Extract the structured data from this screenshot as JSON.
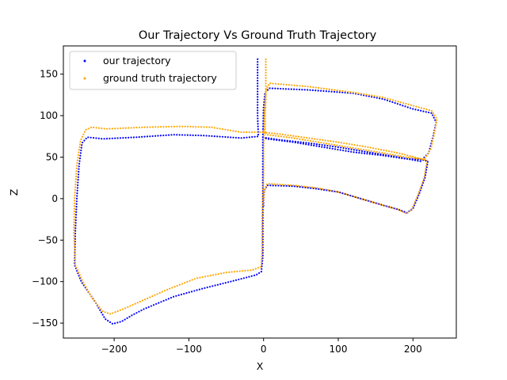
{
  "chart_data": {
    "type": "scatter",
    "title": "Our Trajectory Vs Ground Truth Trajectory",
    "xlabel": "X",
    "ylabel": "Z",
    "xlim": [
      -268,
      258
    ],
    "ylim": [
      -168,
      184
    ],
    "xticks": [
      -200,
      -100,
      0,
      100,
      200
    ],
    "yticks": [
      -150,
      -100,
      -50,
      0,
      50,
      100,
      150
    ],
    "grid": false,
    "legend_position": "upper left",
    "series": [
      {
        "name": "our trajectory",
        "color": "#0000ff",
        "path": [
          [
            -8,
            168
          ],
          [
            -8,
            150
          ],
          [
            -8,
            120
          ],
          [
            -8,
            100
          ],
          [
            -7,
            75
          ],
          [
            -30,
            73
          ],
          [
            -80,
            76
          ],
          [
            -120,
            77
          ],
          [
            -170,
            74
          ],
          [
            -215,
            72
          ],
          [
            -236,
            74
          ],
          [
            -243,
            67
          ],
          [
            -247,
            40
          ],
          [
            -250,
            0
          ],
          [
            -252,
            -40
          ],
          [
            -253,
            -80
          ],
          [
            -244,
            -100
          ],
          [
            -225,
            -125
          ],
          [
            -212,
            -145
          ],
          [
            -202,
            -151
          ],
          [
            -190,
            -148
          ],
          [
            -175,
            -140
          ],
          [
            -160,
            -133
          ],
          [
            -120,
            -118
          ],
          [
            -80,
            -108
          ],
          [
            -40,
            -99
          ],
          [
            -10,
            -92
          ],
          [
            -3,
            -88
          ],
          [
            -1,
            -70
          ],
          [
            -1,
            -40
          ],
          [
            -1,
            0
          ],
          [
            -1,
            40
          ],
          [
            -1,
            75
          ],
          [
            0,
            110
          ],
          [
            2,
            128
          ],
          [
            8,
            133
          ],
          [
            60,
            131
          ],
          [
            120,
            127
          ],
          [
            160,
            120
          ],
          [
            200,
            108
          ],
          [
            225,
            103
          ],
          [
            231,
            92
          ],
          [
            227,
            75
          ],
          [
            221,
            55
          ],
          [
            210,
            45
          ],
          [
            180,
            50
          ],
          [
            140,
            56
          ],
          [
            100,
            62
          ],
          [
            60,
            67
          ],
          [
            20,
            71
          ],
          [
            -2,
            74
          ],
          [
            5,
            72
          ],
          [
            40,
            68
          ],
          [
            80,
            62
          ],
          [
            120,
            56
          ],
          [
            160,
            52
          ],
          [
            190,
            48
          ],
          [
            212,
            47
          ],
          [
            220,
            45
          ],
          [
            216,
            25
          ],
          [
            208,
            5
          ],
          [
            200,
            -12
          ],
          [
            192,
            -17
          ],
          [
            180,
            -13
          ],
          [
            160,
            -8
          ],
          [
            130,
            0
          ],
          [
            100,
            8
          ],
          [
            70,
            12
          ],
          [
            40,
            15
          ],
          [
            5,
            16
          ],
          [
            1,
            10
          ],
          [
            0,
            0
          ],
          [
            0,
            -10
          ]
        ]
      },
      {
        "name": "ground truth trajectory",
        "color": "#ffa500",
        "path": [
          [
            3,
            168
          ],
          [
            3,
            150
          ],
          [
            3,
            120
          ],
          [
            2,
            100
          ],
          [
            2,
            80
          ],
          [
            -30,
            80
          ],
          [
            -70,
            86
          ],
          [
            -110,
            87
          ],
          [
            -160,
            86
          ],
          [
            -210,
            84
          ],
          [
            -230,
            86
          ],
          [
            -238,
            83
          ],
          [
            -245,
            70
          ],
          [
            -250,
            40
          ],
          [
            -253,
            0
          ],
          [
            -254,
            -40
          ],
          [
            -252,
            -80
          ],
          [
            -242,
            -100
          ],
          [
            -228,
            -122
          ],
          [
            -215,
            -136
          ],
          [
            -205,
            -139
          ],
          [
            -185,
            -132
          ],
          [
            -165,
            -124
          ],
          [
            -130,
            -110
          ],
          [
            -90,
            -96
          ],
          [
            -50,
            -89
          ],
          [
            -15,
            -86
          ],
          [
            -3,
            -82
          ],
          [
            -2,
            -60
          ],
          [
            -2,
            -30
          ],
          [
            -1,
            0
          ],
          [
            0,
            30
          ],
          [
            0,
            60
          ],
          [
            1,
            100
          ],
          [
            3,
            130
          ],
          [
            8,
            139
          ],
          [
            60,
            135
          ],
          [
            120,
            128
          ],
          [
            160,
            122
          ],
          [
            200,
            112
          ],
          [
            225,
            106
          ],
          [
            232,
            96
          ],
          [
            229,
            80
          ],
          [
            224,
            60
          ],
          [
            215,
            47
          ],
          [
            180,
            55
          ],
          [
            140,
            62
          ],
          [
            100,
            68
          ],
          [
            60,
            73
          ],
          [
            20,
            78
          ],
          [
            0,
            80
          ],
          [
            5,
            77
          ],
          [
            40,
            73
          ],
          [
            80,
            67
          ],
          [
            120,
            61
          ],
          [
            160,
            55
          ],
          [
            190,
            50
          ],
          [
            210,
            48
          ],
          [
            219,
            46
          ],
          [
            215,
            25
          ],
          [
            207,
            5
          ],
          [
            199,
            -12
          ],
          [
            191,
            -18
          ],
          [
            180,
            -13
          ],
          [
            160,
            -8
          ],
          [
            130,
            0
          ],
          [
            100,
            8
          ],
          [
            70,
            13
          ],
          [
            40,
            16
          ],
          [
            5,
            18
          ],
          [
            1,
            10
          ],
          [
            0,
            0
          ],
          [
            -1,
            -10
          ]
        ]
      }
    ]
  }
}
